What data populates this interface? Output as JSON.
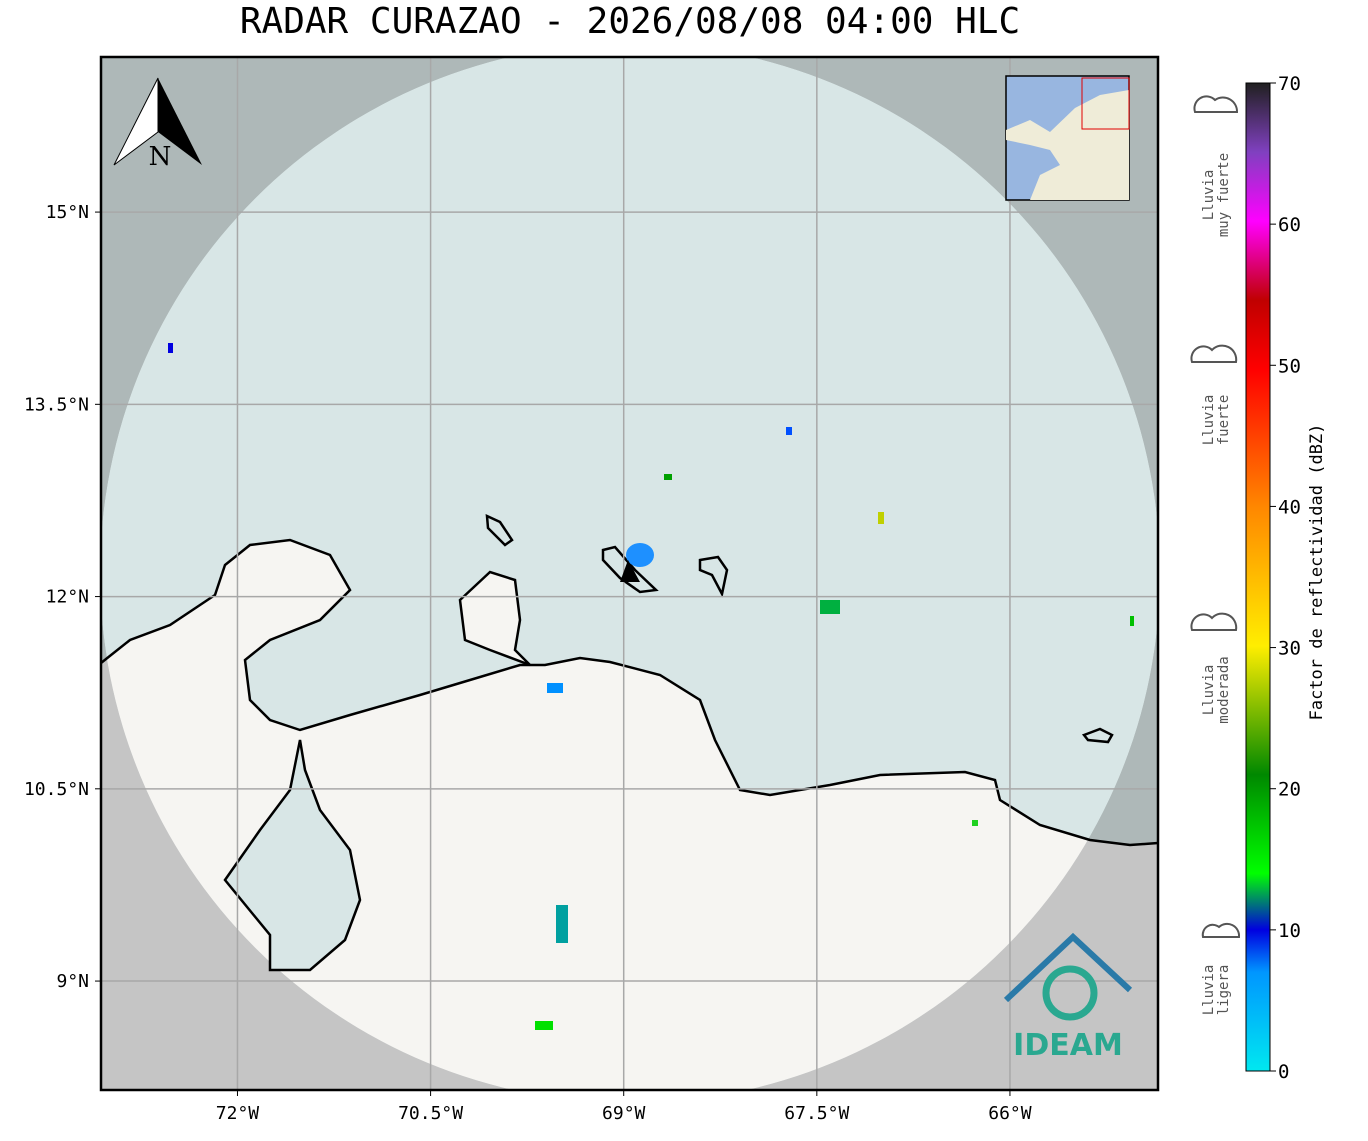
{
  "header": {
    "title": "RADAR CURAZAO - 2026/08/08 04:00 HLC"
  },
  "map": {
    "xlim": [
      -73.06,
      -64.85
    ],
    "ylim": [
      8.15,
      16.21
    ],
    "grid": true,
    "xticks": [
      {
        "value": -72,
        "label": "72°W"
      },
      {
        "value": -70.5,
        "label": "70.5°W"
      },
      {
        "value": -69,
        "label": "69°W"
      },
      {
        "value": -67.5,
        "label": "67.5°W"
      },
      {
        "value": -66,
        "label": "66°W"
      }
    ],
    "yticks": [
      {
        "value": 15,
        "label": "15°N"
      },
      {
        "value": 13.5,
        "label": "13.5°N"
      },
      {
        "value": 12,
        "label": "12°N"
      },
      {
        "value": 10.5,
        "label": "10.5°N"
      },
      {
        "value": 9,
        "label": "9°N"
      }
    ],
    "north_label": "N",
    "logo": "IDEAM"
  },
  "colorbar": {
    "label": "Factor de reflectividad (dBZ)",
    "lim": [
      0,
      70
    ],
    "ticks": [
      0,
      10,
      20,
      30,
      40,
      50,
      60,
      70
    ]
  },
  "legend": [
    {
      "lines": [
        "Lluvia",
        "muy fuerte"
      ]
    },
    {
      "lines": [
        "Lluvia",
        "fuerte"
      ]
    },
    {
      "lines": [
        "Lluvia",
        "moderada"
      ]
    },
    {
      "lines": [
        "Lluvia",
        "ligera"
      ]
    }
  ]
}
